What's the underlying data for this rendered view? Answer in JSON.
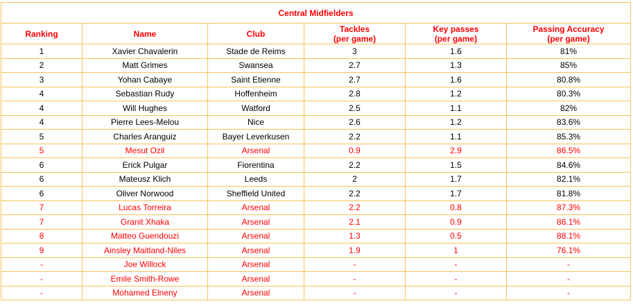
{
  "title": "Central Midfielders",
  "columns": [
    {
      "line1": "Ranking",
      "line2": ""
    },
    {
      "line1": "Name",
      "line2": ""
    },
    {
      "line1": "Club",
      "line2": ""
    },
    {
      "line1": "Tackles",
      "line2": "(per game)"
    },
    {
      "line1": "Key passes",
      "line2": "(per game)"
    },
    {
      "line1": "Passing Accuracy",
      "line2": "(per game)"
    }
  ],
  "rows": [
    {
      "ranking": "1",
      "name": "Xavier Chavalerin",
      "club": "Stade de Reims",
      "tackles": "3",
      "key_passes": "1.6",
      "accuracy": "81%",
      "highlight": false
    },
    {
      "ranking": "2",
      "name": "Matt Grimes",
      "club": "Swansea",
      "tackles": "2.7",
      "key_passes": "1.3",
      "accuracy": "85%",
      "highlight": false
    },
    {
      "ranking": "3",
      "name": "Yohan Cabaye",
      "club": "Saint Etienne",
      "tackles": "2.7",
      "key_passes": "1.6",
      "accuracy": "80.8%",
      "highlight": false
    },
    {
      "ranking": "4",
      "name": "Sebastian Rudy",
      "club": "Hoffenheim",
      "tackles": "2.8",
      "key_passes": "1.2",
      "accuracy": "80.3%",
      "highlight": false
    },
    {
      "ranking": "4",
      "name": "Will Hughes",
      "club": "Watford",
      "tackles": "2.5",
      "key_passes": "1.1",
      "accuracy": "82%",
      "highlight": false
    },
    {
      "ranking": "4",
      "name": "Pierre Lees-Melou",
      "club": "Nice",
      "tackles": "2.6",
      "key_passes": "1.2",
      "accuracy": "83.6%",
      "highlight": false
    },
    {
      "ranking": "5",
      "name": "Charles Aranguiz",
      "club": "Bayer Leverkusen",
      "tackles": "2.2",
      "key_passes": "1.1",
      "accuracy": "85.3%",
      "highlight": false
    },
    {
      "ranking": "5",
      "name": "Mesut Ozil",
      "club": "Arsenal",
      "tackles": "0.9",
      "key_passes": "2.9",
      "accuracy": "86.5%",
      "highlight": true
    },
    {
      "ranking": "6",
      "name": "Erick Pulgar",
      "club": "Fiorentina",
      "tackles": "2.2",
      "key_passes": "1.5",
      "accuracy": "84.6%",
      "highlight": false
    },
    {
      "ranking": "6",
      "name": "Mateusz Klich",
      "club": "Leeds",
      "tackles": "2",
      "key_passes": "1.7",
      "accuracy": "82.1%",
      "highlight": false
    },
    {
      "ranking": "6",
      "name": "Oliver Norwood",
      "club": "Sheffield United",
      "tackles": "2.2",
      "key_passes": "1.7",
      "accuracy": "81.8%",
      "highlight": false
    },
    {
      "ranking": "7",
      "name": "Lucas Torreira",
      "club": "Arsenal",
      "tackles": "2.2",
      "key_passes": "0.8",
      "accuracy": "87.3%",
      "highlight": true
    },
    {
      "ranking": "7",
      "name": "Granit Xhaka",
      "club": "Arsenal",
      "tackles": "2.1",
      "key_passes": "0.9",
      "accuracy": "86.1%",
      "highlight": true
    },
    {
      "ranking": "8",
      "name": "Matteo Guendouzi",
      "club": "Arsenal",
      "tackles": "1.3",
      "key_passes": "0.5",
      "accuracy": "88.1%",
      "highlight": true
    },
    {
      "ranking": "9",
      "name": "Ainsley Maitland-Niles",
      "club": "Arsenal",
      "tackles": "1.9",
      "key_passes": "1",
      "accuracy": "76.1%",
      "highlight": true
    },
    {
      "ranking": "-",
      "name": "Joe Willock",
      "club": "Arsenal",
      "tackles": "-",
      "key_passes": "-",
      "accuracy": "-",
      "highlight": true
    },
    {
      "ranking": "-",
      "name": "Emile Smith-Rowe",
      "club": "Arsenal",
      "tackles": "-",
      "key_passes": "-",
      "accuracy": "-",
      "highlight": true
    },
    {
      "ranking": "-",
      "name": "Mohamed Elneny",
      "club": "Arsenal",
      "tackles": "-",
      "key_passes": "-",
      "accuracy": "-",
      "highlight": true
    }
  ],
  "colors": {
    "header_text": "#ff0000",
    "highlight_text": "#ff0000",
    "grid_line": "#f5c35a"
  }
}
